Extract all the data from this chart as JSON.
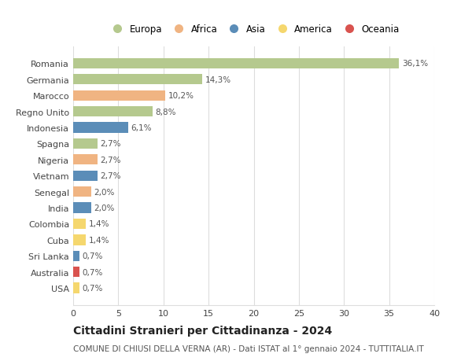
{
  "title": "Cittadini Stranieri per Cittadinanza - 2024",
  "subtitle": "COMUNE DI CHIUSI DELLA VERNA (AR) - Dati ISTAT al 1° gennaio 2024 - TUTTITALIA.IT",
  "categories": [
    "Romania",
    "Germania",
    "Marocco",
    "Regno Unito",
    "Indonesia",
    "Spagna",
    "Nigeria",
    "Vietnam",
    "Senegal",
    "India",
    "Colombia",
    "Cuba",
    "Sri Lanka",
    "Australia",
    "USA"
  ],
  "values": [
    36.1,
    14.3,
    10.2,
    8.8,
    6.1,
    2.7,
    2.7,
    2.7,
    2.0,
    2.0,
    1.4,
    1.4,
    0.7,
    0.7,
    0.7
  ],
  "labels": [
    "36,1%",
    "14,3%",
    "10,2%",
    "8,8%",
    "6,1%",
    "2,7%",
    "2,7%",
    "2,7%",
    "2,0%",
    "2,0%",
    "1,4%",
    "1,4%",
    "0,7%",
    "0,7%",
    "0,7%"
  ],
  "continents": [
    "Europa",
    "Europa",
    "Africa",
    "Europa",
    "Asia",
    "Europa",
    "Africa",
    "Asia",
    "Africa",
    "Asia",
    "America",
    "America",
    "Asia",
    "Oceania",
    "America"
  ],
  "continent_colors": {
    "Europa": "#b5c98e",
    "Africa": "#f0b482",
    "Asia": "#5b8db8",
    "America": "#f5d76e",
    "Oceania": "#d9534f"
  },
  "legend_order": [
    "Europa",
    "Africa",
    "Asia",
    "America",
    "Oceania"
  ],
  "xlim": [
    0,
    40
  ],
  "xticks": [
    0,
    5,
    10,
    15,
    20,
    25,
    30,
    35,
    40
  ],
  "background_color": "#ffffff",
  "grid_color": "#dddddd",
  "bar_height": 0.65,
  "title_fontsize": 10,
  "subtitle_fontsize": 7.5,
  "label_fontsize": 7.5,
  "tick_fontsize": 8,
  "legend_fontsize": 8.5
}
